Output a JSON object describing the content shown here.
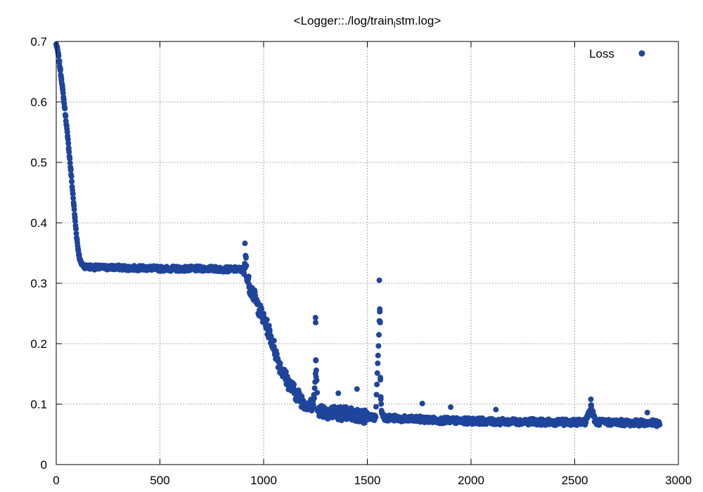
{
  "chart_data": {
    "type": "scatter",
    "title": "<Logger::./log/train_lstm.log>",
    "title_prefix": "<Logger::./log/train",
    "title_subscript": "l",
    "title_suffix": "stm.log>",
    "xlabel": "",
    "ylabel": "",
    "xlim": [
      0,
      3000
    ],
    "ylim": [
      0,
      0.7
    ],
    "x_ticks": [
      0,
      500,
      1000,
      1500,
      2000,
      2500,
      3000
    ],
    "y_ticks": [
      0,
      0.1,
      0.2,
      0.3,
      0.4,
      0.5,
      0.6,
      0.7
    ],
    "x_tick_labels": [
      "0",
      "500",
      "1000",
      "1500",
      "2000",
      "2500",
      "3000"
    ],
    "y_tick_labels": [
      "0",
      "0.1",
      "0.2",
      "0.3",
      "0.4",
      "0.5",
      "0.6",
      "0.7"
    ],
    "grid": true,
    "legend_position": "top-right",
    "series": [
      {
        "name": "Loss",
        "color": "#1f449b",
        "marker": "circle",
        "points": [
          [
            0,
            0.695
          ],
          [
            5,
            0.688
          ],
          [
            10,
            0.678
          ],
          [
            15,
            0.665
          ],
          [
            20,
            0.652
          ],
          [
            25,
            0.638
          ],
          [
            30,
            0.623
          ],
          [
            35,
            0.608
          ],
          [
            40,
            0.592
          ],
          [
            45,
            0.576
          ],
          [
            50,
            0.56
          ],
          [
            55,
            0.542
          ],
          [
            60,
            0.524
          ],
          [
            65,
            0.506
          ],
          [
            70,
            0.487
          ],
          [
            75,
            0.468
          ],
          [
            80,
            0.448
          ],
          [
            85,
            0.428
          ],
          [
            90,
            0.408
          ],
          [
            95,
            0.39
          ],
          [
            100,
            0.372
          ],
          [
            105,
            0.357
          ],
          [
            110,
            0.346
          ],
          [
            115,
            0.338
          ],
          [
            120,
            0.333
          ],
          [
            130,
            0.33
          ],
          [
            140,
            0.328
          ],
          [
            150,
            0.327
          ],
          [
            170,
            0.327
          ],
          [
            190,
            0.326
          ],
          [
            220,
            0.326
          ],
          [
            260,
            0.326
          ],
          [
            300,
            0.326
          ],
          [
            350,
            0.325
          ],
          [
            400,
            0.325
          ],
          [
            450,
            0.325
          ],
          [
            500,
            0.324
          ],
          [
            550,
            0.324
          ],
          [
            600,
            0.324
          ],
          [
            650,
            0.324
          ],
          [
            700,
            0.324
          ],
          [
            750,
            0.324
          ],
          [
            800,
            0.323
          ],
          [
            850,
            0.323
          ],
          [
            880,
            0.323
          ],
          [
            900,
            0.322
          ],
          [
            905,
            0.315
          ],
          [
            910,
            0.366
          ],
          [
            915,
            0.342
          ],
          [
            920,
            0.31
          ],
          [
            930,
            0.298
          ],
          [
            940,
            0.29
          ],
          [
            950,
            0.282
          ],
          [
            960,
            0.274
          ],
          [
            970,
            0.265
          ],
          [
            980,
            0.256
          ],
          [
            990,
            0.248
          ],
          [
            1000,
            0.24
          ],
          [
            1010,
            0.232
          ],
          [
            1020,
            0.225
          ],
          [
            1030,
            0.216
          ],
          [
            1040,
            0.205
          ],
          [
            1050,
            0.195
          ],
          [
            1060,
            0.183
          ],
          [
            1070,
            0.172
          ],
          [
            1080,
            0.162
          ],
          [
            1090,
            0.155
          ],
          [
            1100,
            0.148
          ],
          [
            1110,
            0.142
          ],
          [
            1120,
            0.136
          ],
          [
            1130,
            0.13
          ],
          [
            1140,
            0.125
          ],
          [
            1150,
            0.12
          ],
          [
            1160,
            0.116
          ],
          [
            1170,
            0.112
          ],
          [
            1180,
            0.108
          ],
          [
            1190,
            0.105
          ],
          [
            1200,
            0.102
          ],
          [
            1220,
            0.098
          ],
          [
            1240,
            0.095
          ],
          [
            1250,
            0.243
          ],
          [
            1251,
            0.235
          ],
          [
            1252,
            0.173
          ],
          [
            1253,
            0.145
          ],
          [
            1260,
            0.092
          ],
          [
            1280,
            0.09
          ],
          [
            1300,
            0.088
          ],
          [
            1320,
            0.087
          ],
          [
            1340,
            0.086
          ],
          [
            1360,
            0.118
          ],
          [
            1380,
            0.085
          ],
          [
            1400,
            0.084
          ],
          [
            1420,
            0.083
          ],
          [
            1440,
            0.082
          ],
          [
            1450,
            0.125
          ],
          [
            1460,
            0.081
          ],
          [
            1480,
            0.08
          ],
          [
            1500,
            0.079
          ],
          [
            1520,
            0.078
          ],
          [
            1540,
            0.078
          ],
          [
            1558,
            0.305
          ],
          [
            1560,
            0.253
          ],
          [
            1561,
            0.237
          ],
          [
            1562,
            0.235
          ],
          [
            1563,
            0.144
          ],
          [
            1565,
            0.108
          ],
          [
            1570,
            0.085
          ],
          [
            1580,
            0.079
          ],
          [
            1600,
            0.077
          ],
          [
            1620,
            0.077
          ],
          [
            1650,
            0.076
          ],
          [
            1700,
            0.075
          ],
          [
            1750,
            0.075
          ],
          [
            1765,
            0.101
          ],
          [
            1800,
            0.074
          ],
          [
            1850,
            0.073
          ],
          [
            1900,
            0.073
          ],
          [
            1902,
            0.095
          ],
          [
            1950,
            0.072
          ],
          [
            2000,
            0.072
          ],
          [
            2050,
            0.072
          ],
          [
            2100,
            0.071
          ],
          [
            2120,
            0.091
          ],
          [
            2150,
            0.071
          ],
          [
            2200,
            0.071
          ],
          [
            2250,
            0.071
          ],
          [
            2300,
            0.071
          ],
          [
            2350,
            0.07
          ],
          [
            2400,
            0.07
          ],
          [
            2450,
            0.07
          ],
          [
            2500,
            0.07
          ],
          [
            2550,
            0.07
          ],
          [
            2578,
            0.108
          ],
          [
            2580,
            0.096
          ],
          [
            2600,
            0.07
          ],
          [
            2650,
            0.07
          ],
          [
            2700,
            0.07
          ],
          [
            2750,
            0.069
          ],
          [
            2800,
            0.069
          ],
          [
            2850,
            0.086
          ],
          [
            2870,
            0.069
          ],
          [
            2900,
            0.068
          ],
          [
            2910,
            0.066
          ]
        ]
      }
    ]
  }
}
